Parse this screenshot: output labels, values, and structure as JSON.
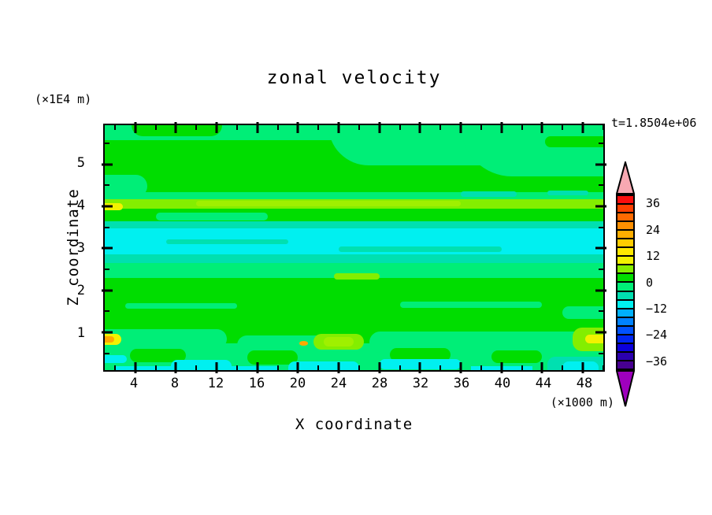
{
  "page": {
    "background": "#ffffff",
    "text_color": "#000000"
  },
  "chart_data": {
    "type": "heatmap",
    "subtype": "filled_contour",
    "title": "zonal velocity",
    "time_label": "t=1.8504e+06",
    "grid": false,
    "legend_position": "right",
    "x_axis": {
      "label": "X coordinate",
      "unit": "(×1000 m)",
      "min": 1,
      "max": 50,
      "major_ticks": [
        4,
        8,
        12,
        16,
        20,
        24,
        28,
        32,
        36,
        40,
        44,
        48
      ],
      "minor_ticks": [
        2,
        6,
        10,
        14,
        18,
        22,
        26,
        30,
        34,
        38,
        42,
        46,
        50
      ]
    },
    "z_axis": {
      "label": "Z coordinate",
      "unit": "(×1E4 m)",
      "min": 0.1,
      "max": 5.93,
      "major_ticks": [
        1,
        2,
        3,
        4,
        5
      ],
      "minor_ticks": [
        0.5,
        1.5,
        2.5,
        3.5,
        4.5,
        5.5
      ]
    },
    "colorbar": {
      "min": -40,
      "max": 40,
      "step": 4,
      "over_color": "#f7a8b2",
      "under_color": "#9e00bd",
      "labels": [
        {
          "value": 36,
          "text": "36"
        },
        {
          "value": 24,
          "text": "24"
        },
        {
          "value": 12,
          "text": "12"
        },
        {
          "value": 0,
          "text": "0"
        },
        {
          "value": -12,
          "text": "−12"
        },
        {
          "value": -24,
          "text": "−24"
        },
        {
          "value": -36,
          "text": "−36"
        }
      ],
      "segments": [
        {
          "from": 36,
          "to": 40,
          "color": "#fb0e0e"
        },
        {
          "from": 32,
          "to": 36,
          "color": "#ff4000"
        },
        {
          "from": 28,
          "to": 32,
          "color": "#ff6a00"
        },
        {
          "from": 24,
          "to": 28,
          "color": "#ff8f00"
        },
        {
          "from": 20,
          "to": 24,
          "color": "#ffae00"
        },
        {
          "from": 16,
          "to": 20,
          "color": "#ffcc00"
        },
        {
          "from": 12,
          "to": 16,
          "color": "#ffe800"
        },
        {
          "from": 8,
          "to": 12,
          "color": "#f2f200"
        },
        {
          "from": 4,
          "to": 8,
          "color": "#84ee00"
        },
        {
          "from": 0,
          "to": 4,
          "color": "#00dd00"
        },
        {
          "from": -4,
          "to": 0,
          "color": "#00ee77"
        },
        {
          "from": -8,
          "to": -4,
          "color": "#00e0b0"
        },
        {
          "from": -12,
          "to": -8,
          "color": "#00f0f0"
        },
        {
          "from": -16,
          "to": -12,
          "color": "#00b0fb"
        },
        {
          "from": -20,
          "to": -16,
          "color": "#0082ff"
        },
        {
          "from": -24,
          "to": -20,
          "color": "#0052ff"
        },
        {
          "from": -28,
          "to": -24,
          "color": "#0026f2"
        },
        {
          "from": -32,
          "to": -28,
          "color": "#0b00dc"
        },
        {
          "from": -36,
          "to": -32,
          "color": "#2b00ae"
        },
        {
          "from": -40,
          "to": -36,
          "color": "#470091"
        }
      ]
    },
    "field": {
      "background": "green",
      "colors": {
        "green": "#00dd00",
        "spring": "#00ee77",
        "turq": "#00e0b0",
        "cyan": "#00f0f0",
        "chart": "#84ee00",
        "chartBright": "#9ff000",
        "yellow": "#f2f200",
        "orange": "#ffa800"
      },
      "shapes": [
        {
          "x": [
            1,
            50
          ],
          "z": [
            5.58,
            5.93
          ],
          "c": "spring",
          "br": "0"
        },
        {
          "x": [
            3.6,
            12.5
          ],
          "z": [
            5.66,
            5.93
          ],
          "c": "green",
          "br": "0 0 28px 28px"
        },
        {
          "x": [
            23,
            50
          ],
          "z": [
            4.98,
            5.93
          ],
          "c": "spring",
          "br": "0 0 0 120px"
        },
        {
          "x": [
            36,
            50
          ],
          "z": [
            4.72,
            5.93
          ],
          "c": "spring",
          "br": "0 0 0 80px"
        },
        {
          "x": [
            44.3,
            50
          ],
          "z": [
            5.4,
            5.66
          ],
          "c": "green",
          "br": "14px 0 0 14px"
        },
        {
          "x": [
            1,
            5.2
          ],
          "z": [
            4.2,
            4.75
          ],
          "c": "spring",
          "br": "0 18px 18px 0"
        },
        {
          "x": [
            1,
            50
          ],
          "z": [
            4.16,
            4.34
          ],
          "c": "spring",
          "br": "0"
        },
        {
          "x": [
            1,
            50
          ],
          "z": [
            3.94,
            4.17
          ],
          "c": "chart",
          "br": "0"
        },
        {
          "x": [
            10,
            36
          ],
          "z": [
            4.0,
            4.13
          ],
          "c": "chartBright",
          "br": "8px"
        },
        {
          "x": [
            1,
            2.8
          ],
          "z": [
            3.9,
            4.07
          ],
          "c": "yellow",
          "br": "0 8px 8px 0"
        },
        {
          "x": [
            36,
            41.5
          ],
          "z": [
            4.23,
            4.35
          ],
          "c": "turq",
          "br": "6px"
        },
        {
          "x": [
            44.5,
            48.5
          ],
          "z": [
            4.26,
            4.38
          ],
          "c": "turq",
          "br": "6px"
        },
        {
          "x": [
            6,
            17
          ],
          "z": [
            3.67,
            3.85
          ],
          "c": "spring",
          "br": "10px"
        },
        {
          "x": [
            1,
            50
          ],
          "z": [
            3.44,
            3.64
          ],
          "c": "turq",
          "br": "0"
        },
        {
          "x": [
            1,
            50
          ],
          "z": [
            2.8,
            3.48
          ],
          "c": "cyan",
          "br": "0"
        },
        {
          "x": [
            7,
            19
          ],
          "z": [
            3.09,
            3.21
          ],
          "c": "turq",
          "br": "8px"
        },
        {
          "x": [
            24,
            40
          ],
          "z": [
            2.92,
            3.04
          ],
          "c": "turq",
          "br": "8px"
        },
        {
          "x": [
            1,
            50
          ],
          "z": [
            2.6,
            2.85
          ],
          "c": "turq",
          "br": "0"
        },
        {
          "x": [
            1,
            50
          ],
          "z": [
            2.3,
            2.65
          ],
          "c": "spring",
          "br": "0"
        },
        {
          "x": [
            23.5,
            28
          ],
          "z": [
            2.26,
            2.4
          ],
          "c": "chart",
          "br": "8px"
        },
        {
          "x": [
            3,
            14
          ],
          "z": [
            1.56,
            1.7
          ],
          "c": "spring",
          "br": "8px"
        },
        {
          "x": [
            30,
            44
          ],
          "z": [
            1.58,
            1.73
          ],
          "c": "spring",
          "br": "8px"
        },
        {
          "x": [
            46,
            50
          ],
          "z": [
            1.32,
            1.62
          ],
          "c": "spring",
          "br": "8px 0 0 8px"
        },
        {
          "x": [
            1,
            50
          ],
          "z": [
            0.1,
            0.74
          ],
          "c": "spring",
          "br": "0"
        },
        {
          "x": [
            1,
            13
          ],
          "z": [
            0.6,
            1.08
          ],
          "c": "spring",
          "br": "0 14px 14px 0"
        },
        {
          "x": [
            14,
            26
          ],
          "z": [
            0.46,
            0.92
          ],
          "c": "spring",
          "br": "14px"
        },
        {
          "x": [
            27,
            50
          ],
          "z": [
            0.52,
            1.02
          ],
          "c": "spring",
          "br": "14px 0 0 14px"
        },
        {
          "x": [
            3.5,
            9
          ],
          "z": [
            0.28,
            0.6
          ],
          "c": "green",
          "br": "10px"
        },
        {
          "x": [
            15,
            20
          ],
          "z": [
            0.24,
            0.56
          ],
          "c": "green",
          "br": "10px"
        },
        {
          "x": [
            29,
            35
          ],
          "z": [
            0.3,
            0.62
          ],
          "c": "green",
          "br": "10px"
        },
        {
          "x": [
            39,
            44
          ],
          "z": [
            0.26,
            0.56
          ],
          "c": "green",
          "br": "10px"
        },
        {
          "x": [
            7.5,
            13.5
          ],
          "z": [
            0.1,
            0.35
          ],
          "c": "cyan",
          "br": "8px 8px 0 0"
        },
        {
          "x": [
            19,
            26
          ],
          "z": [
            0.1,
            0.3
          ],
          "c": "cyan",
          "br": "8px 8px 0 0"
        },
        {
          "x": [
            28,
            36
          ],
          "z": [
            0.12,
            0.37
          ],
          "c": "cyan",
          "br": "8px"
        },
        {
          "x": [
            44.5,
            50
          ],
          "z": [
            0.1,
            0.42
          ],
          "c": "turq",
          "br": "10px 0 0 0"
        },
        {
          "x": [
            46,
            49.5
          ],
          "z": [
            0.1,
            0.3
          ],
          "c": "cyan",
          "br": "8px 8px 0 0"
        },
        {
          "x": [
            1,
            3.2
          ],
          "z": [
            0.26,
            0.45
          ],
          "c": "cyan",
          "br": "0 8px 8px 0"
        },
        {
          "x": [
            2,
            10
          ],
          "z": [
            0.1,
            0.2
          ],
          "c": "cyan",
          "br": "0"
        },
        {
          "x": [
            13,
            18
          ],
          "z": [
            0.1,
            0.19
          ],
          "c": "cyan",
          "br": "0"
        },
        {
          "x": [
            37,
            43
          ],
          "z": [
            0.1,
            0.19
          ],
          "c": "cyan",
          "br": "0"
        },
        {
          "x": [
            21.5,
            26.5
          ],
          "z": [
            0.58,
            0.96
          ],
          "c": "chart",
          "br": "12px"
        },
        {
          "x": [
            22.5,
            25.5
          ],
          "z": [
            0.66,
            0.88
          ],
          "c": "chartBright",
          "br": "10px"
        },
        {
          "x": [
            1,
            2.6
          ],
          "z": [
            0.7,
            0.96
          ],
          "c": "yellow",
          "br": "0 8px 8px 0"
        },
        {
          "x": [
            1,
            1.9
          ],
          "z": [
            0.75,
            0.9
          ],
          "c": "orange",
          "br": "0 6px 6px 0"
        },
        {
          "x": [
            20.1,
            21
          ],
          "z": [
            0.68,
            0.79
          ],
          "c": "orange",
          "br": "50%"
        },
        {
          "x": [
            47,
            50
          ],
          "z": [
            0.55,
            1.12
          ],
          "c": "chart",
          "br": "12px 0 0 12px"
        },
        {
          "x": [
            48.2,
            50
          ],
          "z": [
            0.74,
            0.95
          ],
          "c": "yellow",
          "br": "8px 0 0 8px"
        }
      ]
    }
  }
}
